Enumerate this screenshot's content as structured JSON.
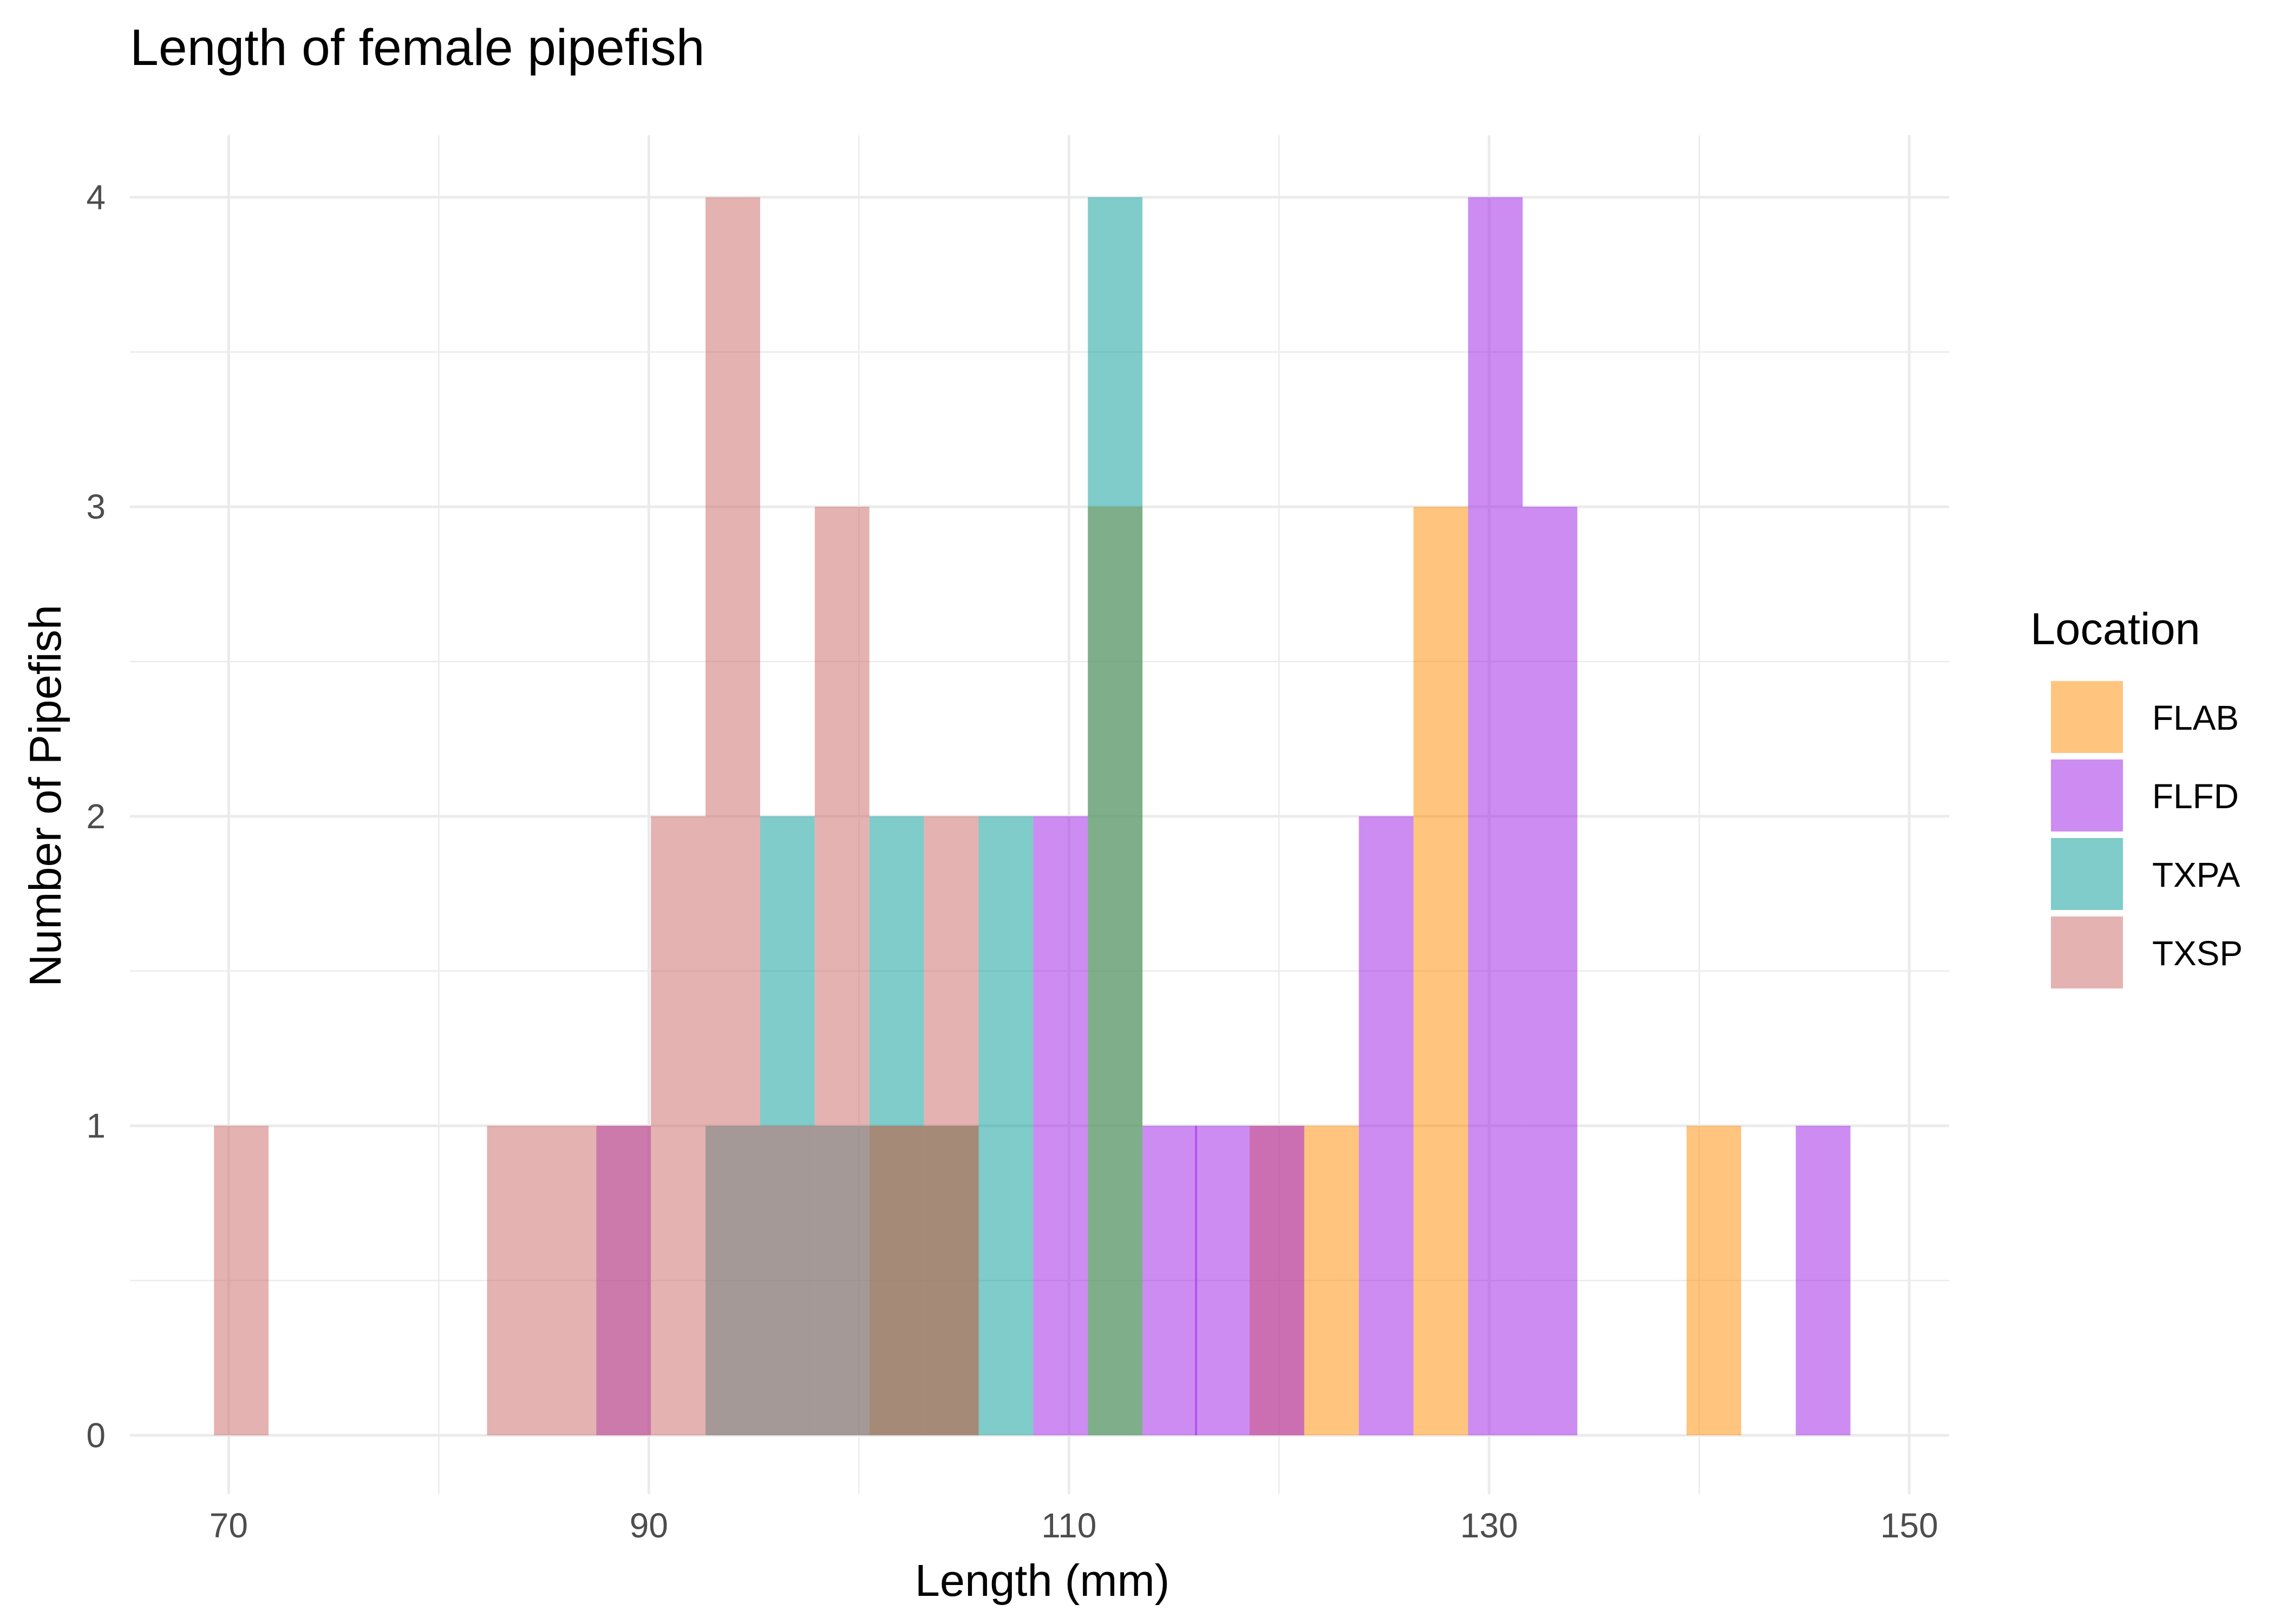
{
  "chart_data": {
    "type": "bar",
    "subtype": "overlapping-histogram",
    "title": "Length of female pipefish",
    "xlabel": "Length (mm)",
    "ylabel": "Number of Pipefish",
    "xlim": [
      65.3,
      151.9
    ],
    "ylim": [
      -0.19,
      4.2
    ],
    "x_ticks": [
      70,
      90,
      110,
      130,
      150
    ],
    "x_tick_labels": [
      "70",
      "90",
      "110",
      "130",
      "150"
    ],
    "y_ticks": [
      0,
      1,
      2,
      3,
      4
    ],
    "y_tick_labels": [
      "0",
      "1",
      "2",
      "3",
      "4"
    ],
    "bin_width": 2.6,
    "grid": true,
    "legend": {
      "title": "Location",
      "position": "right"
    },
    "series": [
      {
        "name": "FLAB",
        "color": "#FF8C00",
        "bins": [
          {
            "x": 101.8,
            "count": 1
          },
          {
            "x": 104.4,
            "count": 1
          },
          {
            "x": 112.2,
            "count": 3
          },
          {
            "x": 119.9,
            "count": 1
          },
          {
            "x": 122.5,
            "count": 1
          },
          {
            "x": 127.7,
            "count": 3
          },
          {
            "x": 140.7,
            "count": 1
          }
        ]
      },
      {
        "name": "FLFD",
        "color": "#9A1AE6",
        "bins": [
          {
            "x": 88.8,
            "count": 1
          },
          {
            "x": 109.6,
            "count": 2
          },
          {
            "x": 114.8,
            "count": 1
          },
          {
            "x": 117.3,
            "count": 1
          },
          {
            "x": 119.9,
            "count": 1
          },
          {
            "x": 125.1,
            "count": 2
          },
          {
            "x": 130.3,
            "count": 4
          },
          {
            "x": 132.9,
            "count": 3
          },
          {
            "x": 145.9,
            "count": 1
          }
        ]
      },
      {
        "name": "TXPA",
        "color": "#009A96",
        "bins": [
          {
            "x": 94.0,
            "count": 1
          },
          {
            "x": 96.6,
            "count": 2
          },
          {
            "x": 99.2,
            "count": 1
          },
          {
            "x": 101.8,
            "count": 2
          },
          {
            "x": 104.4,
            "count": 1
          },
          {
            "x": 107.0,
            "count": 2
          },
          {
            "x": 112.2,
            "count": 4
          }
        ]
      },
      {
        "name": "TXSP",
        "color": "#CC6666",
        "bins": [
          {
            "x": 70.6,
            "count": 1
          },
          {
            "x": 83.6,
            "count": 1
          },
          {
            "x": 86.2,
            "count": 1
          },
          {
            "x": 88.8,
            "count": 1
          },
          {
            "x": 91.4,
            "count": 2
          },
          {
            "x": 94.0,
            "count": 4
          },
          {
            "x": 96.6,
            "count": 1
          },
          {
            "x": 99.2,
            "count": 3
          },
          {
            "x": 101.8,
            "count": 1
          },
          {
            "x": 104.4,
            "count": 2
          }
        ]
      }
    ]
  }
}
